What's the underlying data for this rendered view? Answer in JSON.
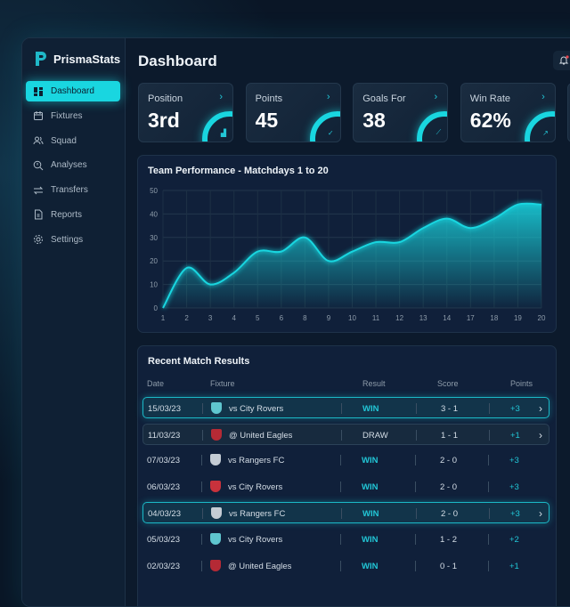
{
  "app": {
    "name": "PrismaStats",
    "page_title": "Dashboard",
    "accent": "#19d6e0"
  },
  "sidebar": {
    "items": [
      {
        "label": "Dashboard",
        "icon": "dashboard-icon",
        "active": true
      },
      {
        "label": "Fixtures",
        "icon": "calendar-icon"
      },
      {
        "label": "Squad",
        "icon": "users-icon"
      },
      {
        "label": "Analyses",
        "icon": "search-chart-icon"
      },
      {
        "label": "Transfers",
        "icon": "transfer-icon"
      },
      {
        "label": "Reports",
        "icon": "document-icon"
      },
      {
        "label": "Settings",
        "icon": "gear-icon"
      }
    ]
  },
  "stats": [
    {
      "label": "Position",
      "value": "3rd",
      "icon": "bar-chart-icon"
    },
    {
      "label": "Points",
      "value": "45",
      "icon": "check-icon"
    },
    {
      "label": "Goals For",
      "value": "38",
      "icon": "chart-icon"
    },
    {
      "label": "Win Rate",
      "value": "62%",
      "icon": "arrow-up-right-icon"
    }
  ],
  "chart_data": {
    "type": "area",
    "title": "Team Performance - Matchdays 1 to 20",
    "categories": [
      "1",
      "2",
      "3",
      "4",
      "5",
      "6",
      "8",
      "9",
      "10",
      "11",
      "12",
      "13",
      "14",
      "17",
      "18",
      "19",
      "20"
    ],
    "values": [
      0,
      17,
      10,
      15,
      24,
      24,
      30,
      20,
      24,
      28,
      28,
      34,
      38,
      34,
      38,
      44,
      44
    ],
    "ylim": [
      0,
      50
    ],
    "yticks": [
      "0",
      "10",
      "20",
      "30",
      "40",
      "50"
    ],
    "grid": true,
    "color": "#19d6e0"
  },
  "results": {
    "title": "Recent Match Results",
    "headers": [
      "Date",
      "Fixture",
      "Result",
      "Score",
      "Points"
    ],
    "rows": [
      {
        "date": "15/03/23",
        "fixture": "vs City Rovers",
        "result": "WIN",
        "score": "3 - 1",
        "points": "+3",
        "crest": "#5fc6cf",
        "state": "highlight"
      },
      {
        "date": "11/03/23",
        "fixture": "@ United Eagles",
        "result": "DRAW",
        "score": "1 - 1",
        "points": "+1",
        "crest": "#b52a35",
        "state": "selected"
      },
      {
        "date": "07/03/23",
        "fixture": "vs Rangers FC",
        "result": "WIN",
        "score": "2 - 0",
        "points": "+3",
        "crest": "#c4ccd4",
        "state": ""
      },
      {
        "date": "06/03/23",
        "fixture": "vs City Rovers",
        "result": "WIN",
        "score": "2 - 0",
        "points": "+3",
        "crest": "#c8323c",
        "state": ""
      },
      {
        "date": "04/03/23",
        "fixture": "vs Rangers FC",
        "result": "WIN",
        "score": "2 - 0",
        "points": "+3",
        "crest": "#c4ccd4",
        "state": "highlight"
      },
      {
        "date": "05/03/23",
        "fixture": "vs City Rovers",
        "result": "WIN",
        "score": "1 - 2",
        "points": "+2",
        "crest": "#5fc6cf",
        "state": ""
      },
      {
        "date": "02/03/23",
        "fixture": "@ United Eagles",
        "result": "WIN",
        "score": "0 - 1",
        "points": "+1",
        "crest": "#b52a35",
        "state": ""
      }
    ]
  }
}
